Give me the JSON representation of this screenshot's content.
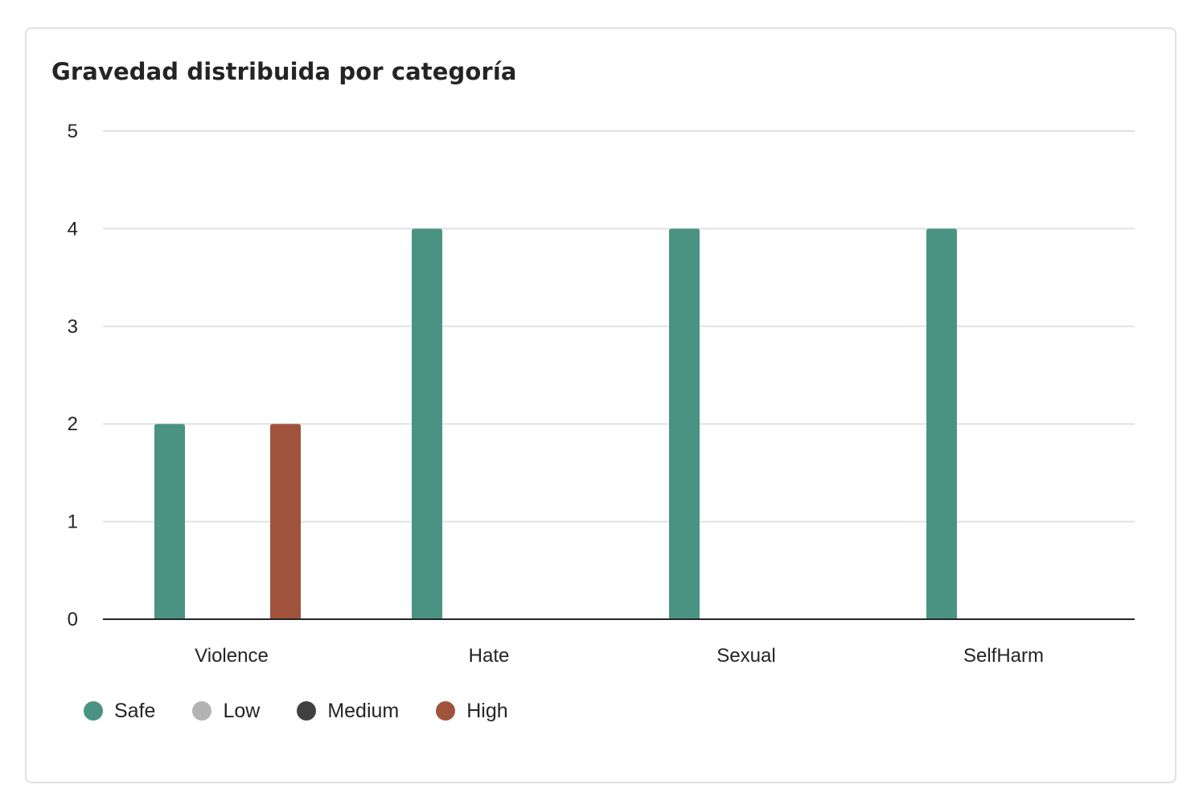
{
  "card": {
    "title": "Gravedad distribuida por categoría"
  },
  "chart_data": {
    "type": "bar",
    "title": "Gravedad distribuida por categoría",
    "categories": [
      "Violence",
      "Hate",
      "Sexual",
      "SelfHarm"
    ],
    "series": [
      {
        "name": "Safe",
        "color": "#4a9382",
        "values": [
          2,
          4,
          4,
          4
        ]
      },
      {
        "name": "Low",
        "color": "#b3b3b3",
        "values": [
          0,
          0,
          0,
          0
        ]
      },
      {
        "name": "Medium",
        "color": "#404040",
        "values": [
          0,
          0,
          0,
          0
        ]
      },
      {
        "name": "High",
        "color": "#a0533a",
        "values": [
          2,
          0,
          0,
          0
        ]
      }
    ],
    "ylim": [
      0,
      5
    ],
    "yticks": [
      0,
      1,
      2,
      3,
      4,
      5
    ],
    "grid": true,
    "legend_position": "bottom-left"
  }
}
